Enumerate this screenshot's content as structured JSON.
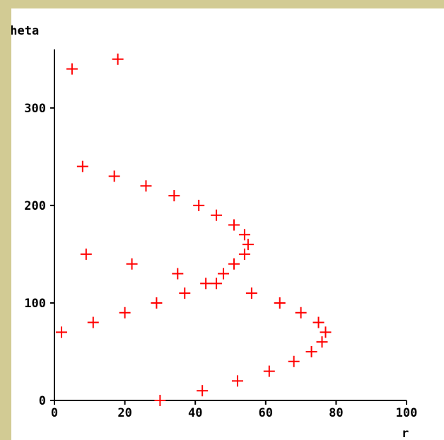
{
  "chart_data": {
    "type": "scatter",
    "xlabel": "r",
    "ylabel": "theta",
    "xlim": [
      0,
      100
    ],
    "ylim": [
      0,
      360
    ],
    "xticks": [
      0,
      20,
      40,
      60,
      80,
      100
    ],
    "yticks": [
      0,
      100,
      200,
      300
    ],
    "marker": "plus",
    "color": "#ff0000",
    "grid": false,
    "points": [
      {
        "r": 30,
        "theta": 0
      },
      {
        "r": 42,
        "theta": 10
      },
      {
        "r": 52,
        "theta": 20
      },
      {
        "r": 61,
        "theta": 30
      },
      {
        "r": 68,
        "theta": 40
      },
      {
        "r": 73,
        "theta": 50
      },
      {
        "r": 76,
        "theta": 60
      },
      {
        "r": 77,
        "theta": 70
      },
      {
        "r": 75,
        "theta": 80
      },
      {
        "r": 70,
        "theta": 90
      },
      {
        "r": 64,
        "theta": 100
      },
      {
        "r": 56,
        "theta": 110
      },
      {
        "r": 46,
        "theta": 120
      },
      {
        "r": 2,
        "theta": 70
      },
      {
        "r": 11,
        "theta": 80
      },
      {
        "r": 20,
        "theta": 90
      },
      {
        "r": 29,
        "theta": 100
      },
      {
        "r": 37,
        "theta": 110
      },
      {
        "r": 43,
        "theta": 120
      },
      {
        "r": 48,
        "theta": 130
      },
      {
        "r": 51,
        "theta": 140
      },
      {
        "r": 54,
        "theta": 150
      },
      {
        "r": 55,
        "theta": 160
      },
      {
        "r": 54,
        "theta": 170
      },
      {
        "r": 51,
        "theta": 180
      },
      {
        "r": 46,
        "theta": 190
      },
      {
        "r": 41,
        "theta": 200
      },
      {
        "r": 34,
        "theta": 210
      },
      {
        "r": 26,
        "theta": 220
      },
      {
        "r": 17,
        "theta": 230
      },
      {
        "r": 8,
        "theta": 240
      },
      {
        "r": 9,
        "theta": 150
      },
      {
        "r": 22,
        "theta": 140
      },
      {
        "r": 35,
        "theta": 130
      },
      {
        "r": 5,
        "theta": 340
      },
      {
        "r": 18,
        "theta": 350
      }
    ]
  }
}
